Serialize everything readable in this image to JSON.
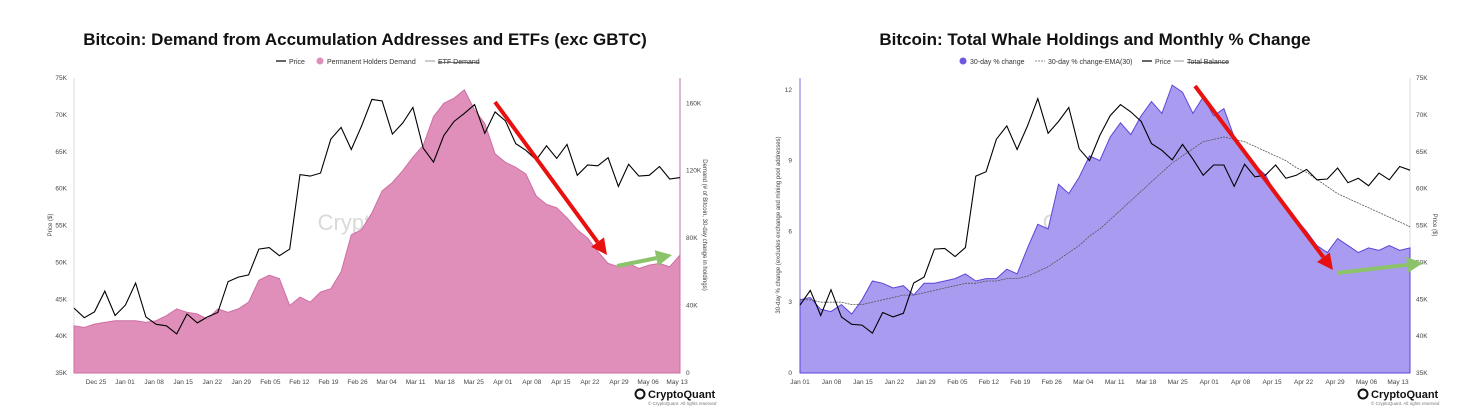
{
  "chart_data": [
    {
      "type": "area",
      "title": "Bitcoin: Demand from Accumulation Addresses and ETFs (exc GBTC)",
      "legend": [
        "Price",
        "Permanent Holders Demand",
        "ETF Demand"
      ],
      "legend_placement": "top-center",
      "ylabel_left": "Price ($)",
      "ylabel_right": "Demand (# of Bitcoin, 30-day change in holdings)",
      "y_left_ticks": [
        "35K",
        "40K",
        "45K",
        "50K",
        "55K",
        "60K",
        "65K",
        "70K",
        "75K"
      ],
      "y_right_ticks": [
        "0",
        "40K",
        "80K",
        "120K",
        "160K"
      ],
      "x_ticks": [
        "Dec 25",
        "Jan 01",
        "Jan 08",
        "Jan 15",
        "Jan 22",
        "Jan 29",
        "Feb 05",
        "Feb 12",
        "Feb 19",
        "Feb 26",
        "Mar 04",
        "Mar 11",
        "Mar 18",
        "Mar 25",
        "Apr 01",
        "Apr 08",
        "Apr 15",
        "Apr 22",
        "Apr 29",
        "May 06",
        "May 13"
      ],
      "ylim_left": [
        35000,
        75000
      ],
      "ylim_right": [
        0,
        175000
      ],
      "colors": {
        "price": "#000000",
        "demand": "#e08fba",
        "etf": "#999999",
        "arrow_down": "#e8110f",
        "arrow_up": "#8cc36a"
      },
      "series": [
        {
          "name": "Price",
          "values": [
            43800,
            42500,
            43300,
            46100,
            42800,
            44200,
            47200,
            42600,
            41600,
            41400,
            40300,
            43000,
            41800,
            42600,
            43200,
            47400,
            48000,
            48300,
            51800,
            52000,
            50900,
            51800,
            61900,
            61700,
            62100,
            66700,
            68300,
            65300,
            68500,
            72100,
            71900,
            67400,
            68900,
            71000,
            65500,
            63600,
            67200,
            69100,
            70200,
            71400,
            67500,
            70400,
            69200,
            66100,
            65200,
            63900,
            65800,
            64100,
            66000,
            61800,
            63200,
            63100,
            64200,
            60300,
            63300,
            61700,
            61800,
            63000,
            61300,
            61500
          ],
          "x_idx": [
            0,
            1,
            2,
            3,
            4,
            5,
            6,
            7,
            8,
            9,
            10,
            11,
            12,
            13,
            14,
            15,
            16,
            17,
            18,
            19,
            20,
            21,
            22,
            23,
            24,
            25,
            26,
            27,
            28,
            29,
            30,
            31,
            32,
            33,
            34,
            35,
            36,
            37,
            38,
            39,
            40,
            41,
            42,
            43,
            44,
            45,
            46,
            47,
            48,
            49,
            50,
            51,
            52,
            53,
            54,
            55,
            56,
            57,
            58,
            59
          ]
        },
        {
          "name": "Permanent Holders Demand",
          "values": [
            28000,
            27000,
            29000,
            30000,
            31000,
            31000,
            31000,
            30000,
            31000,
            34000,
            38000,
            36000,
            35000,
            32000,
            38000,
            36000,
            38000,
            42000,
            55000,
            58000,
            56000,
            40000,
            45000,
            42000,
            48000,
            50000,
            60000,
            82000,
            85000,
            95000,
            108000,
            113000,
            120000,
            128000,
            135000,
            152000,
            160000,
            163000,
            168000,
            156000,
            148000,
            130000,
            125000,
            122000,
            118000,
            105000,
            100000,
            98000,
            92000,
            85000,
            80000,
            72000,
            65000,
            63000,
            65000,
            62000,
            64000,
            65000,
            63000,
            70000
          ],
          "x_idx": [
            0,
            1,
            2,
            3,
            4,
            5,
            6,
            7,
            8,
            9,
            10,
            11,
            12,
            13,
            14,
            15,
            16,
            17,
            18,
            19,
            20,
            21,
            22,
            23,
            24,
            25,
            26,
            27,
            28,
            29,
            30,
            31,
            32,
            33,
            34,
            35,
            36,
            37,
            38,
            39,
            40,
            41,
            42,
            43,
            44,
            45,
            46,
            47,
            48,
            49,
            50,
            51,
            52,
            53,
            54,
            55,
            56,
            57,
            58,
            59
          ]
        }
      ],
      "x_count": 60,
      "watermark": "CryptoQuant",
      "logo": "CryptoQuant",
      "logo_sub": "© CryptoQuant. All rights reserved"
    },
    {
      "type": "area",
      "title": "Bitcoin: Total Whale Holdings and Monthly % Change",
      "legend": [
        "30-day % change",
        "30-day % change-EMA(30)",
        "Price",
        "Total Balance"
      ],
      "legend_placement": "top-center",
      "ylabel_left": "30-day % change (excludes exchange and mining pool addresses)",
      "ylabel_right": "Price ($)",
      "y_left_ticks": [
        "0",
        "3",
        "6",
        "9",
        "12"
      ],
      "y_right_ticks": [
        "35K",
        "40K",
        "45K",
        "50K",
        "55K",
        "60K",
        "65K",
        "70K",
        "75K"
      ],
      "x_ticks": [
        "Jan 01",
        "Jan 08",
        "Jan 15",
        "Jan 22",
        "Jan 29",
        "Feb 05",
        "Feb 12",
        "Feb 19",
        "Feb 26",
        "Mar 04",
        "Mar 11",
        "Mar 18",
        "Mar 25",
        "Apr 01",
        "Apr 08",
        "Apr 15",
        "Apr 22",
        "Apr 29",
        "May 06",
        "May 13"
      ],
      "ylim_left": [
        0,
        12.5
      ],
      "ylim_right": [
        35000,
        75000
      ],
      "colors": {
        "change": "#a99bf0",
        "ema": "#666666",
        "price": "#000000",
        "arrow_down": "#e8110f",
        "arrow_up": "#8cc36a"
      },
      "series": [
        {
          "name": "30-day % change",
          "values": [
            3.1,
            3.2,
            2.7,
            2.6,
            2.9,
            2.5,
            3.1,
            3.9,
            3.8,
            3.6,
            3.7,
            3.3,
            3.8,
            3.8,
            3.9,
            4.0,
            4.2,
            3.9,
            4.0,
            4.0,
            4.4,
            4.2,
            5.3,
            6.3,
            6.1,
            8.0,
            7.6,
            8.3,
            9.2,
            9.0,
            10.0,
            10.6,
            10.1,
            10.9,
            11.5,
            11.0,
            12.2,
            11.9,
            11.0,
            11.7,
            10.9,
            11.2,
            10.0,
            9.3,
            8.8,
            8.4,
            7.6,
            7.1,
            6.5,
            6.0,
            5.4,
            5.1,
            5.7,
            5.4,
            5.1,
            5.3,
            5.2,
            5.4,
            5.2,
            5.3
          ],
          "x_idx": [
            0,
            1,
            2,
            3,
            4,
            5,
            6,
            7,
            8,
            9,
            10,
            11,
            12,
            13,
            14,
            15,
            16,
            17,
            18,
            19,
            20,
            21,
            22,
            23,
            24,
            25,
            26,
            27,
            28,
            29,
            30,
            31,
            32,
            33,
            34,
            35,
            36,
            37,
            38,
            39,
            40,
            41,
            42,
            43,
            44,
            45,
            46,
            47,
            48,
            49,
            50,
            51,
            52,
            53,
            54,
            55,
            56,
            57,
            58,
            59
          ]
        },
        {
          "name": "30-day % change-EMA(30)",
          "values": [
            3.1,
            3.1,
            3.0,
            3.0,
            3.0,
            2.9,
            2.9,
            3.0,
            3.1,
            3.2,
            3.3,
            3.3,
            3.4,
            3.5,
            3.6,
            3.7,
            3.8,
            3.8,
            3.9,
            3.9,
            4.0,
            4.0,
            4.1,
            4.3,
            4.5,
            4.8,
            5.1,
            5.4,
            5.8,
            6.1,
            6.5,
            6.9,
            7.3,
            7.7,
            8.1,
            8.5,
            8.9,
            9.2,
            9.5,
            9.8,
            9.9,
            10.0,
            9.9,
            9.8,
            9.6,
            9.4,
            9.2,
            9.0,
            8.7,
            8.5,
            8.2,
            7.9,
            7.6,
            7.4,
            7.2,
            7.0,
            6.8,
            6.6,
            6.4,
            6.2
          ],
          "x_idx": [
            0,
            1,
            2,
            3,
            4,
            5,
            6,
            7,
            8,
            9,
            10,
            11,
            12,
            13,
            14,
            15,
            16,
            17,
            18,
            19,
            20,
            21,
            22,
            23,
            24,
            25,
            26,
            27,
            28,
            29,
            30,
            31,
            32,
            33,
            34,
            35,
            36,
            37,
            38,
            39,
            40,
            41,
            42,
            43,
            44,
            45,
            46,
            47,
            48,
            49,
            50,
            51,
            52,
            53,
            54,
            55,
            56,
            57,
            58,
            59
          ]
        },
        {
          "name": "Price",
          "values": [
            44200,
            46200,
            42800,
            46300,
            42600,
            41600,
            41500,
            40400,
            43200,
            42600,
            43100,
            47200,
            48000,
            51800,
            51900,
            50800,
            52000,
            61700,
            62300,
            66700,
            68500,
            65300,
            68500,
            72200,
            67500,
            69100,
            71000,
            65400,
            63800,
            67200,
            69900,
            71400,
            70400,
            69100,
            66100,
            65200,
            63900,
            66000,
            64000,
            61800,
            63200,
            63200,
            60300,
            63300,
            61600,
            61800,
            63200,
            61400,
            61800,
            62600,
            61200,
            61300,
            62800,
            60800,
            61400,
            60400,
            62100,
            61200,
            63000,
            62500
          ],
          "x_idx": [
            0,
            1,
            2,
            3,
            4,
            5,
            6,
            7,
            8,
            9,
            10,
            11,
            12,
            13,
            14,
            15,
            16,
            17,
            18,
            19,
            20,
            21,
            22,
            23,
            24,
            25,
            26,
            27,
            28,
            29,
            30,
            31,
            32,
            33,
            34,
            35,
            36,
            37,
            38,
            39,
            40,
            41,
            42,
            43,
            44,
            45,
            46,
            47,
            48,
            49,
            50,
            51,
            52,
            53,
            54,
            55,
            56,
            57,
            58,
            59
          ]
        }
      ],
      "x_count": 60,
      "watermark": "CryptoQuant",
      "logo": "CryptoQuant",
      "logo_sub": "© CryptoQuant. All rights reserved"
    }
  ]
}
